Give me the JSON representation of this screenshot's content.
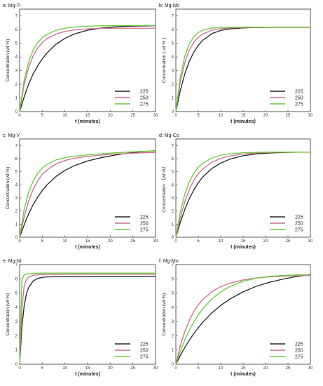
{
  "chart_data": [
    {
      "type": "line",
      "title": "a: Mg-Ti",
      "xlabel": "t (minutes)",
      "ylabel": "Concentration (wt %)",
      "xlim": [
        0,
        30
      ],
      "ylim": [
        0,
        7.5
      ],
      "xticks": [
        0,
        5,
        10,
        15,
        20,
        25,
        30
      ],
      "yticks": [
        0,
        1,
        2,
        3,
        4,
        5,
        6,
        7
      ],
      "legend_position": "bottom-right",
      "x": [
        0,
        1,
        2,
        3,
        4,
        5,
        6,
        8,
        10,
        12,
        15,
        18,
        21,
        24,
        27,
        30
      ],
      "series": [
        {
          "name": "225",
          "color": "#222222",
          "values": [
            0,
            1.08,
            2.02,
            2.76,
            3.36,
            3.86,
            4.28,
            4.92,
            5.36,
            5.67,
            5.96,
            6.11,
            6.2,
            6.25,
            6.27,
            6.29
          ]
        },
        {
          "name": "250",
          "color": "#cc6b8e",
          "values": [
            0,
            1.99,
            3.24,
            4.09,
            4.66,
            5.05,
            5.33,
            5.67,
            5.87,
            5.97,
            6.06,
            6.09,
            6.1,
            6.1,
            6.1,
            6.1
          ]
        },
        {
          "name": "275",
          "color": "#66cc33",
          "values": [
            0,
            2.29,
            3.65,
            4.51,
            5.05,
            5.41,
            5.65,
            5.95,
            6.1,
            6.19,
            6.25,
            6.28,
            6.29,
            6.3,
            6.3,
            6.3
          ]
        }
      ]
    },
    {
      "type": "line",
      "title": "b: Mg-Nb",
      "xlabel": "t (minutes)",
      "ylabel": "Concentration ( wt % )",
      "xlim": [
        0,
        30
      ],
      "ylim": [
        0,
        7.5
      ],
      "xticks": [
        0,
        5,
        10,
        15,
        20,
        25,
        30
      ],
      "yticks": [
        0,
        1,
        2,
        3,
        4,
        5,
        6,
        7
      ],
      "legend_position": "bottom-right",
      "x": [
        0,
        1,
        2,
        3,
        4,
        5,
        6,
        8,
        10,
        12,
        15,
        18,
        21,
        24,
        27,
        30
      ],
      "series": [
        {
          "name": "225",
          "color": "#222222",
          "values": [
            0,
            1.55,
            2.77,
            3.68,
            4.35,
            4.85,
            5.22,
            5.7,
            5.94,
            6.05,
            6.13,
            6.16,
            6.17,
            6.18,
            6.18,
            6.18
          ]
        },
        {
          "name": "250",
          "color": "#cc6b8e",
          "values": [
            0,
            2.2,
            3.6,
            4.5,
            5.07,
            5.44,
            5.68,
            5.95,
            6.07,
            6.12,
            6.15,
            6.16,
            6.16,
            6.16,
            6.16,
            6.16
          ]
        },
        {
          "name": "275",
          "color": "#66cc33",
          "values": [
            0,
            2.55,
            4.06,
            4.96,
            5.48,
            5.79,
            5.96,
            6.11,
            6.15,
            6.17,
            6.18,
            6.18,
            6.18,
            6.18,
            6.18,
            6.18
          ]
        }
      ]
    },
    {
      "type": "line",
      "title": "c: Mg-V",
      "xlabel": "t (minutes)",
      "ylabel": "Concentration (wt %)",
      "xlim": [
        0,
        30
      ],
      "ylim": [
        0,
        7.5
      ],
      "xticks": [
        0,
        5,
        10,
        15,
        20,
        25,
        30
      ],
      "yticks": [
        0,
        1,
        2,
        3,
        4,
        5,
        6,
        7
      ],
      "legend_position": "bottom-right",
      "x": [
        0,
        1,
        2,
        3,
        4,
        5,
        6,
        8,
        10,
        12,
        15,
        18,
        21,
        24,
        27,
        30
      ],
      "series": [
        {
          "name": "225",
          "color": "#222222",
          "values": [
            0,
            0.94,
            1.79,
            2.49,
            3.07,
            3.56,
            3.98,
            4.63,
            5.1,
            5.45,
            5.82,
            6.07,
            6.27,
            6.42,
            6.53,
            6.6
          ]
        },
        {
          "name": "250",
          "color": "#cc6b8e",
          "values": [
            0,
            1.55,
            2.78,
            3.67,
            4.31,
            4.79,
            5.13,
            5.59,
            5.86,
            6.02,
            6.17,
            6.27,
            6.34,
            6.4,
            6.44,
            6.47
          ]
        },
        {
          "name": "275",
          "color": "#66cc33",
          "values": [
            0,
            2.12,
            3.44,
            4.3,
            4.88,
            5.28,
            5.55,
            5.89,
            6.07,
            6.18,
            6.29,
            6.37,
            6.44,
            6.5,
            6.55,
            6.58
          ]
        }
      ]
    },
    {
      "type": "line",
      "title": "d: Mg-Co",
      "xlabel": "t (minutes)",
      "ylabel": "Concentration （wt %）",
      "xlim": [
        0,
        30
      ],
      "ylim": [
        0,
        7.5
      ],
      "xticks": [
        0,
        5,
        10,
        15,
        20,
        25,
        30
      ],
      "yticks": [
        0,
        1,
        2,
        3,
        4,
        5,
        6,
        7
      ],
      "legend_position": "bottom-right",
      "x": [
        0,
        1,
        2,
        3,
        4,
        5,
        6,
        8,
        10,
        12,
        15,
        18,
        21,
        24,
        27,
        30
      ],
      "series": [
        {
          "name": "225",
          "color": "#222222",
          "values": [
            0,
            1.14,
            2.12,
            2.94,
            3.61,
            4.16,
            4.6,
            5.24,
            5.66,
            5.95,
            6.22,
            6.36,
            6.43,
            6.47,
            6.49,
            6.5
          ]
        },
        {
          "name": "250",
          "color": "#cc6b8e",
          "values": [
            0,
            1.5,
            2.73,
            3.65,
            4.34,
            4.85,
            5.21,
            5.71,
            6.02,
            6.2,
            6.35,
            6.43,
            6.47,
            6.49,
            6.5,
            6.5
          ]
        },
        {
          "name": "275",
          "color": "#66cc33",
          "values": [
            0,
            1.96,
            3.29,
            4.23,
            4.88,
            5.33,
            5.64,
            6.04,
            6.26,
            6.37,
            6.45,
            6.48,
            6.5,
            6.5,
            6.5,
            6.5
          ]
        }
      ]
    },
    {
      "type": "line",
      "title": "e: Mg-Ni",
      "xlabel": "t (minutes)",
      "ylabel": "Concentration (wt %)",
      "xlim": [
        0,
        30
      ],
      "ylim": [
        0,
        7
      ],
      "xticks": [
        0,
        5,
        10,
        15,
        20,
        25,
        30
      ],
      "yticks": [
        0,
        1,
        2,
        3,
        4,
        5,
        6,
        7
      ],
      "legend_position": "bottom-right",
      "x": [
        0,
        0.5,
        1,
        1.5,
        2,
        3,
        4,
        5,
        6,
        8,
        10,
        15,
        20,
        25,
        30
      ],
      "series": [
        {
          "name": "225",
          "color": "#222222",
          "values": [
            0,
            2.6,
            4.1,
            4.95,
            5.4,
            5.85,
            6.03,
            6.1,
            6.13,
            6.15,
            6.16,
            6.17,
            6.18,
            6.18,
            6.18
          ]
        },
        {
          "name": "250",
          "color": "#cc6b8e",
          "values": [
            0,
            3.9,
            5.5,
            5.95,
            6.12,
            6.24,
            6.28,
            6.3,
            6.31,
            6.32,
            6.32,
            6.32,
            6.32,
            6.32,
            6.32
          ]
        },
        {
          "name": "275",
          "color": "#66cc33",
          "values": [
            0,
            5.9,
            6.28,
            6.34,
            6.36,
            6.38,
            6.39,
            6.4,
            6.4,
            6.4,
            6.4,
            6.4,
            6.4,
            6.4,
            6.4
          ]
        }
      ]
    },
    {
      "type": "line",
      "title": "f: Mg-Mo",
      "xlabel": "t (minutes)",
      "ylabel": "Concentration (wt %)",
      "xlim": [
        0,
        30
      ],
      "ylim": [
        0,
        7
      ],
      "xticks": [
        0,
        5,
        10,
        15,
        20,
        25,
        30
      ],
      "yticks": [
        0,
        1,
        2,
        3,
        4,
        5,
        6,
        7
      ],
      "legend_position": "bottom-right",
      "x": [
        0,
        1,
        2,
        3,
        4,
        5,
        6,
        8,
        10,
        12,
        15,
        18,
        21,
        24,
        27,
        30
      ],
      "series": [
        {
          "name": "225",
          "color": "#222222",
          "values": [
            0,
            0.62,
            1.18,
            1.69,
            2.15,
            2.57,
            2.95,
            3.6,
            4.13,
            4.57,
            5.09,
            5.48,
            5.77,
            5.99,
            6.16,
            6.3
          ]
        },
        {
          "name": "250",
          "color": "#cc6b8e",
          "values": [
            0,
            1.31,
            2.3,
            3.08,
            3.69,
            4.17,
            4.55,
            5.09,
            5.45,
            5.69,
            5.92,
            6.06,
            6.14,
            6.19,
            6.22,
            6.24
          ]
        },
        {
          "name": "275",
          "color": "#66cc33",
          "values": [
            0,
            0.92,
            1.71,
            2.39,
            2.97,
            3.47,
            3.9,
            4.58,
            5.08,
            5.45,
            5.83,
            6.05,
            6.17,
            6.24,
            6.27,
            6.29
          ]
        }
      ]
    }
  ]
}
